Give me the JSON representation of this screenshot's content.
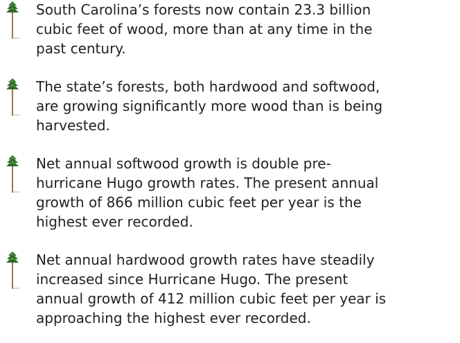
{
  "items": [
    {
      "lines": [
        "South Carolina’s forests now contain 23.3 billion",
        "cubic feet of wood, more than at any time in the",
        "past century."
      ]
    },
    {
      "lines": [
        "The state’s forests, both hardwood and softwood,",
        "are growing significantly more wood than is being",
        "harvested."
      ]
    },
    {
      "lines": [
        "Net annual softwood growth is double pre-",
        "hurricane Hugo growth rates. The present annual",
        "growth of 866 million cubic feet per year is the",
        "highest ever recorded."
      ]
    },
    {
      "lines": [
        "Net annual hardwood growth rates have steadily",
        "increased since Hurricane Hugo. The present",
        "annual growth of 412 million cubic feet per year is",
        "approaching the highest ever recorded."
      ]
    }
  ]
}
